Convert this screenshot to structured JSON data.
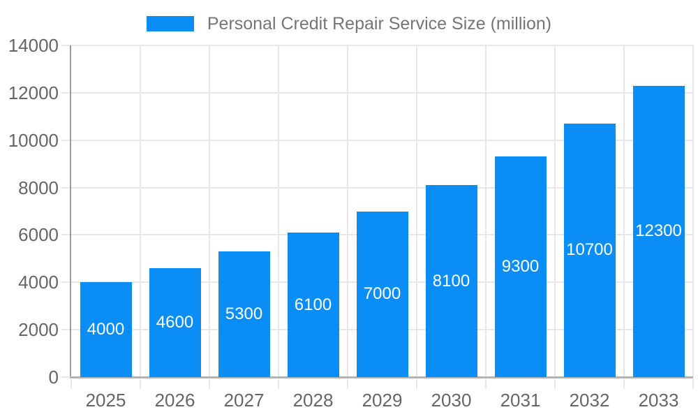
{
  "legend": {
    "label": "Personal Credit Repair Service Size (million)"
  },
  "colors": {
    "bar": "#0a8ef6",
    "bar_label_text": "#ffffff",
    "legend_text": "#757575",
    "axis_text": "#666666",
    "grid": "#e7e7e7",
    "y_axis_line": "#9b9b9b",
    "x_axis_line": "#b3b3b3",
    "background": "#ffffff"
  },
  "chart_data": {
    "type": "bar",
    "title": "Personal Credit Repair Service Size (million)",
    "categories": [
      "2025",
      "2026",
      "2027",
      "2028",
      "2029",
      "2030",
      "2031",
      "2032",
      "2033"
    ],
    "series": [
      {
        "name": "Personal Credit Repair Service Size (million)",
        "values": [
          4000,
          4600,
          5300,
          6100,
          7000,
          8100,
          9300,
          10700,
          12300
        ]
      }
    ],
    "xlabel": "",
    "ylabel": "",
    "ylim": [
      0,
      14000
    ],
    "yticks": [
      0,
      2000,
      4000,
      6000,
      8000,
      10000,
      12000,
      14000
    ],
    "grid": true,
    "grid_vertical_at_category_boundaries": true,
    "legend_position": "top",
    "bar_value_labels": "inside-center"
  }
}
